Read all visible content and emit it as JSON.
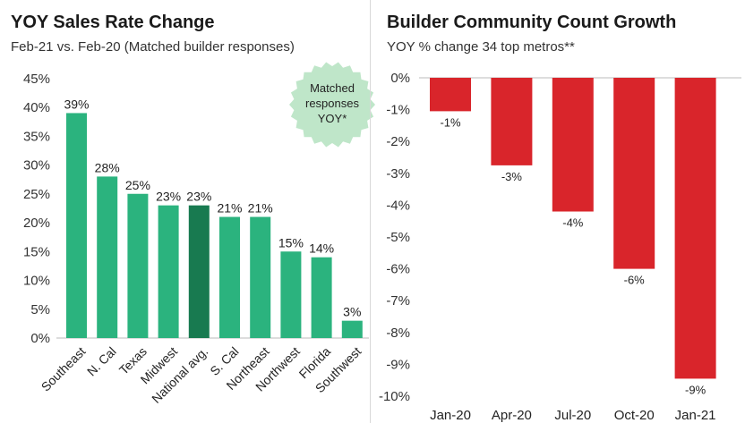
{
  "chart_data": [
    {
      "type": "bar",
      "title": "YOY Sales Rate Change",
      "subtitle": "Feb-21 vs. Feb-20 (Matched builder responses)",
      "categories": [
        "Southeast",
        "N. Cal",
        "Texas",
        "Midwest",
        "National avg.",
        "S. Cal",
        "Northeast",
        "Northwest",
        "Florida",
        "Southwest"
      ],
      "values": [
        39,
        28,
        25,
        23,
        23,
        21,
        21,
        15,
        14,
        3
      ],
      "data_labels": [
        "39%",
        "28%",
        "25%",
        "23%",
        "23%",
        "21%",
        "21%",
        "15%",
        "14%",
        "3%"
      ],
      "highlight_category": "National avg.",
      "yticks": [
        "0%",
        "5%",
        "10%",
        "15%",
        "20%",
        "25%",
        "30%",
        "35%",
        "40%",
        "45%"
      ],
      "ylim": [
        0,
        45
      ],
      "grid": false,
      "colors": {
        "bar": "#2bb37e",
        "highlight": "#187a50"
      },
      "annotation": {
        "text": [
          "Matched",
          "responses",
          "YOY*"
        ],
        "fill": "#bfe6c9"
      }
    },
    {
      "type": "bar",
      "title": "Builder Community Count Growth",
      "subtitle": "YOY % change 34 top metros**",
      "categories": [
        "Jan-20",
        "Apr-20",
        "Jul-20",
        "Oct-20",
        "Jan-21"
      ],
      "values": [
        -1.05,
        -2.75,
        -4.2,
        -6.0,
        -9.45
      ],
      "data_labels": [
        "-1%",
        "-3%",
        "-4%",
        "-6%",
        "-9%"
      ],
      "yticks": [
        "0%",
        "-1%",
        "-2%",
        "-3%",
        "-4%",
        "-5%",
        "-6%",
        "-7%",
        "-8%",
        "-9%",
        "-10%"
      ],
      "ylim": [
        -10,
        0
      ],
      "grid": false,
      "colors": {
        "bar": "#d9252b"
      }
    }
  ]
}
